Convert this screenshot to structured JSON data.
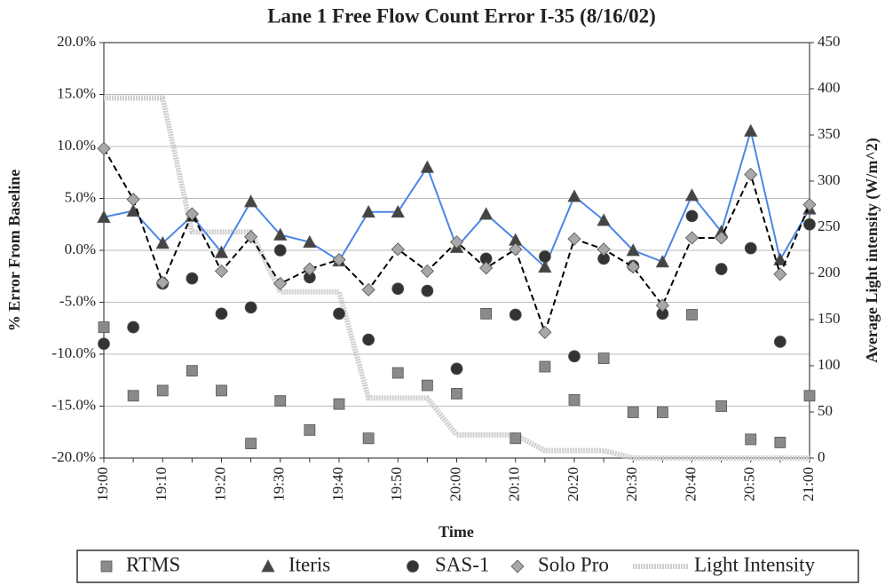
{
  "chart_data": {
    "type": "line",
    "title": "Lane 1 Free Flow Count Error I-35 (8/16/02)",
    "xlabel": "Time",
    "ylabel": "% Error From Baseline",
    "y2label": "Average Light intensity (W/m^2)",
    "categories": [
      "19:00",
      null,
      "19:10",
      null,
      "19:20",
      null,
      "19:30",
      null,
      "19:40",
      null,
      "19:50",
      null,
      "20:00",
      null,
      "20:10",
      null,
      "20:20",
      null,
      "20:30",
      null,
      "20:40",
      null,
      "20:50",
      null,
      "21:00"
    ],
    "ylim": [
      -20,
      20
    ],
    "yticks": [
      {
        "value": 20,
        "label": "20.0%"
      },
      {
        "value": 15,
        "label": "15.0%"
      },
      {
        "value": 10,
        "label": "10.0%"
      },
      {
        "value": 5,
        "label": "5.0%"
      },
      {
        "value": 0,
        "label": "0.0%"
      },
      {
        "value": -5,
        "label": "-5.0%"
      },
      {
        "value": -10,
        "label": "-10.0%"
      },
      {
        "value": -15,
        "label": "-15.0%"
      },
      {
        "value": -20,
        "label": "-20.0%"
      }
    ],
    "y2lim": [
      0,
      450
    ],
    "y2ticks": [
      0,
      50,
      100,
      150,
      200,
      250,
      300,
      350,
      400,
      450
    ],
    "grid": true,
    "legend": "bottom",
    "series": [
      {
        "name": "RTMS",
        "color": "#8a8a8a",
        "marker": "square",
        "line": null,
        "values": [
          -7.4,
          -14.0,
          -13.5,
          -11.6,
          -13.5,
          -18.6,
          -14.5,
          -17.3,
          -14.8,
          -18.1,
          -11.8,
          -13.0,
          -13.8,
          -6.1,
          -18.1,
          -11.2,
          -14.4,
          -10.4,
          -15.6,
          -15.6,
          -6.2,
          -15.0,
          -18.2,
          -18.5,
          -14.0
        ]
      },
      {
        "name": "Iteris",
        "color": "#444444",
        "marker": "triangle",
        "line": "solid",
        "line_color": "#4a86e8",
        "values": [
          3.2,
          3.8,
          0.7,
          3.3,
          -0.2,
          4.7,
          1.5,
          0.8,
          -1.0,
          3.7,
          3.7,
          8.0,
          0.3,
          3.5,
          1.0,
          -1.6,
          5.2,
          2.9,
          0.0,
          -1.1,
          5.3,
          1.8,
          11.5,
          -0.9,
          4.0
        ]
      },
      {
        "name": "SAS-1",
        "color": "#333333",
        "marker": "circle",
        "line": null,
        "values": [
          -9.0,
          -7.4,
          -3.2,
          -2.7,
          -6.1,
          -5.5,
          0.0,
          -2.6,
          -6.1,
          -8.6,
          -3.7,
          -3.9,
          -11.4,
          -0.8,
          -6.2,
          -0.6,
          -10.2,
          -0.8,
          -1.5,
          -6.1,
          3.3,
          -1.8,
          0.2,
          -8.8,
          2.5
        ]
      },
      {
        "name": "Solo Pro",
        "color": "#a8a8a8",
        "marker": "diamond",
        "line": "dashed",
        "line_color": "#000000",
        "values": [
          9.8,
          4.9,
          -3.1,
          3.5,
          -2.0,
          1.3,
          -3.2,
          -1.8,
          -0.9,
          -3.8,
          0.1,
          -2.0,
          0.8,
          -1.7,
          0.1,
          -7.9,
          1.1,
          0.1,
          -1.6,
          -5.3,
          1.2,
          1.2,
          7.3,
          -2.3,
          4.4
        ]
      },
      {
        "name": "Light Intensity",
        "color": "#cfcfcf",
        "marker": "none",
        "line": "solid",
        "line_color": "#cfcfcf",
        "axis": "y2",
        "values": [
          390,
          390,
          390,
          245,
          245,
          245,
          180,
          180,
          180,
          65,
          65,
          65,
          25,
          25,
          25,
          8,
          8,
          8,
          0,
          0,
          0,
          0,
          0,
          0,
          0
        ]
      }
    ]
  }
}
